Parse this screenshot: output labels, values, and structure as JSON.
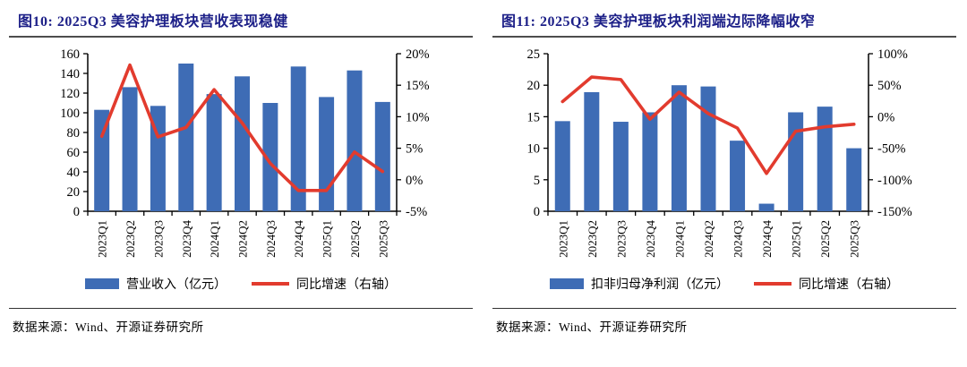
{
  "figures": [
    {
      "title": "图10:  2025Q3 美容护理板块营收表现稳健",
      "legend": {
        "bar": "营业收入（亿元）",
        "line": "同比增速（右轴）"
      },
      "source": "数据来源：Wind、开源证券研究所"
    },
    {
      "title": "图11:  2025Q3 美容护理板块利润端边际降幅收窄",
      "legend": {
        "bar": "扣非归母净利润（亿元）",
        "line": "同比增速（右轴）"
      },
      "source": "数据来源：Wind、开源证券研究所"
    }
  ],
  "chart_data": [
    {
      "type": "bar",
      "title": "2025Q3 美容护理板块营收表现稳健",
      "categories": [
        "2023Q1",
        "2023Q2",
        "2023Q3",
        "2023Q4",
        "2024Q1",
        "2024Q2",
        "2024Q3",
        "2024Q4",
        "2025Q1",
        "2025Q2",
        "2025Q3"
      ],
      "series": [
        {
          "name": "营业收入（亿元）",
          "type": "bar",
          "axis": "left",
          "color": "#3e6cb5",
          "values": [
            103,
            126,
            107,
            150,
            119,
            137,
            110,
            147,
            116,
            143,
            111
          ]
        },
        {
          "name": "同比增速（右轴）",
          "type": "line",
          "axis": "right",
          "color": "#e23b2e",
          "values": [
            6.9,
            18.2,
            6.8,
            8.3,
            14.3,
            9.0,
            2.6,
            -1.7,
            -1.7,
            4.4,
            1.3
          ]
        }
      ],
      "left_axis": {
        "min": 0,
        "max": 160,
        "labels": [
          "160",
          "140",
          "120",
          "100",
          "80",
          "60",
          "40",
          "20",
          "0"
        ]
      },
      "right_axis": {
        "min": -5,
        "max": 20,
        "labels": [
          "20%",
          "15%",
          "10%",
          "5%",
          "0%",
          "-5%"
        ]
      },
      "grid": false,
      "legend_position": "bottom"
    },
    {
      "type": "bar",
      "title": "2025Q3 美容护理板块利润端边际降幅收窄",
      "categories": [
        "2023Q1",
        "2023Q2",
        "2023Q3",
        "2023Q4",
        "2024Q1",
        "2024Q2",
        "2024Q3",
        "2024Q4",
        "2025Q1",
        "2025Q2",
        "2025Q3"
      ],
      "series": [
        {
          "name": "扣非归母净利润（亿元）",
          "type": "bar",
          "axis": "left",
          "color": "#3e6cb5",
          "values": [
            14.3,
            18.9,
            14.2,
            15.7,
            20.0,
            19.8,
            11.2,
            1.2,
            15.7,
            16.6,
            10.0
          ]
        },
        {
          "name": "同比增速（右轴）",
          "type": "line",
          "axis": "right",
          "color": "#e23b2e",
          "values": [
            24,
            63,
            59,
            -4,
            39,
            5,
            -18,
            -90,
            -23,
            -16,
            -12
          ]
        }
      ],
      "left_axis": {
        "min": 0,
        "max": 25,
        "labels": [
          "25",
          "20",
          "15",
          "10",
          "5",
          "0"
        ]
      },
      "right_axis": {
        "min": -150,
        "max": 100,
        "labels": [
          "100%",
          "50%",
          "0%",
          "-50%",
          "-100%",
          "-150%"
        ]
      },
      "grid": false,
      "legend_position": "bottom"
    }
  ],
  "colors": {
    "bar_blue": "#3e6cb5",
    "line_red": "#e23b2e",
    "title_navy": "#1d2088",
    "axis_black": "#000000",
    "rule_gray": "#4d4d4d"
  }
}
